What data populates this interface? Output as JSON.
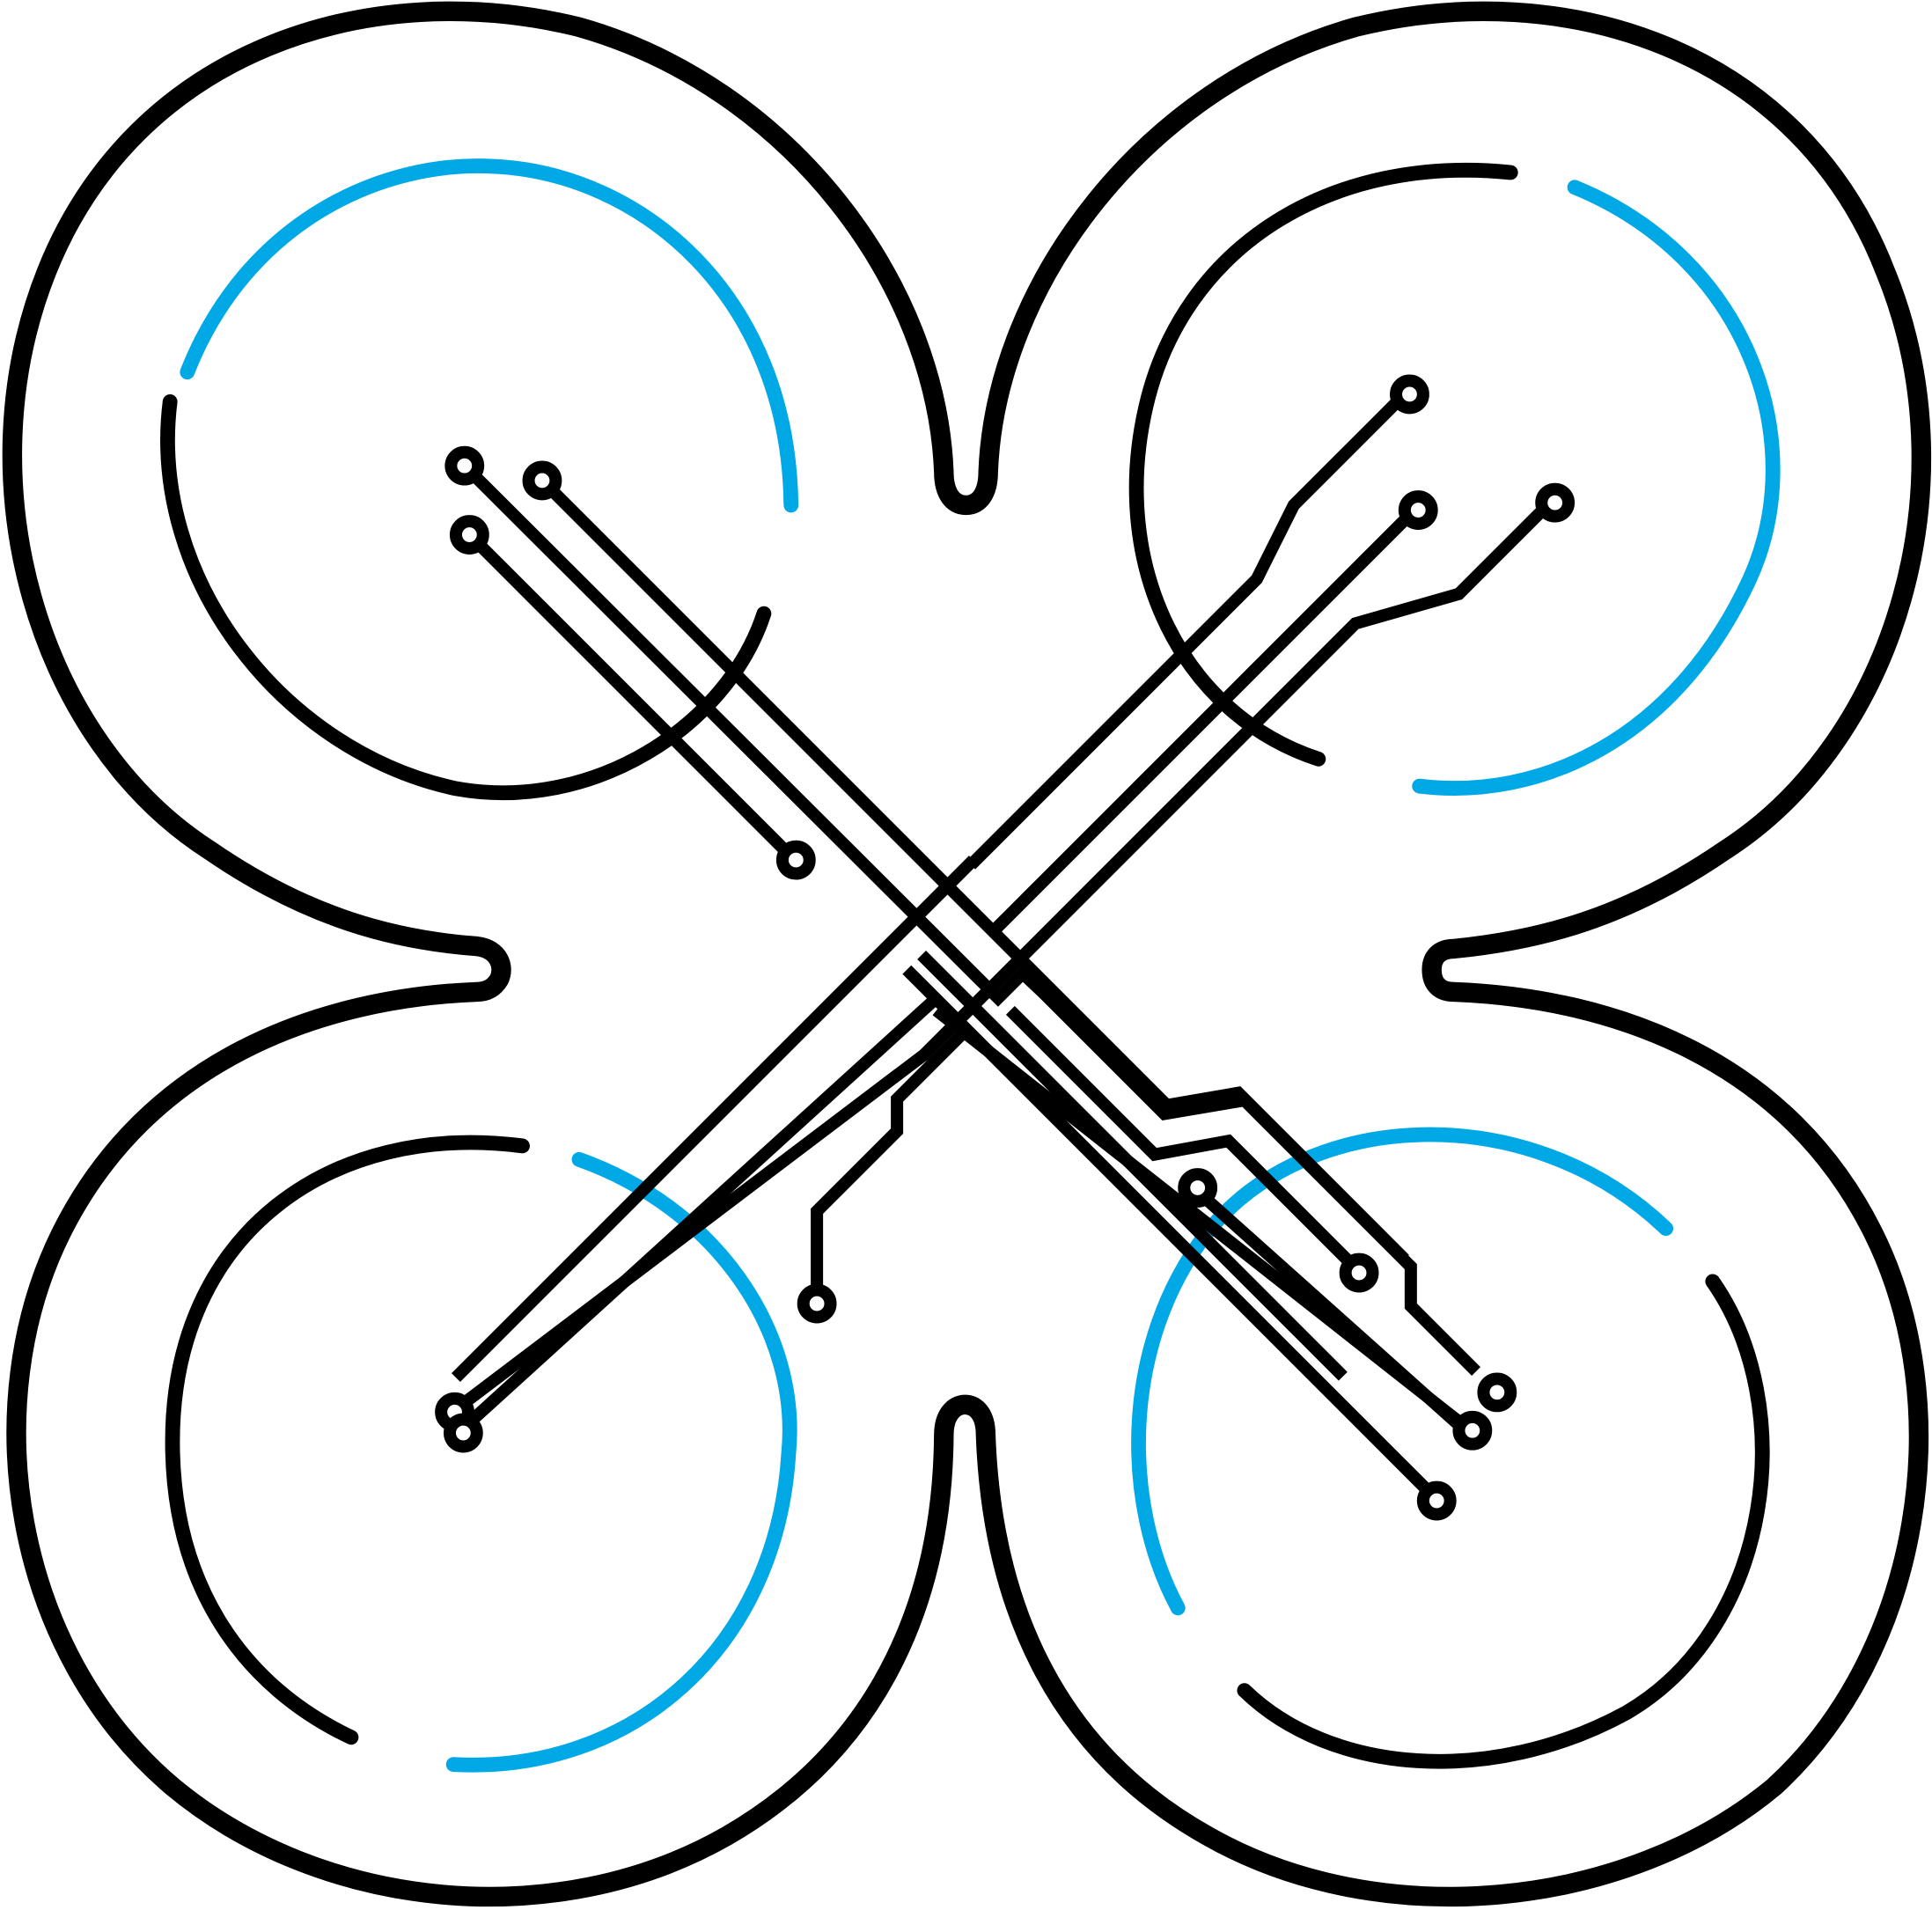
{
  "logo": {
    "subject": "drone",
    "colors": {
      "outline": "#000000",
      "accent": "#00a9e6",
      "background": "#ffffff"
    },
    "rotor_count": 4,
    "circuit_pad_count": 16
  }
}
